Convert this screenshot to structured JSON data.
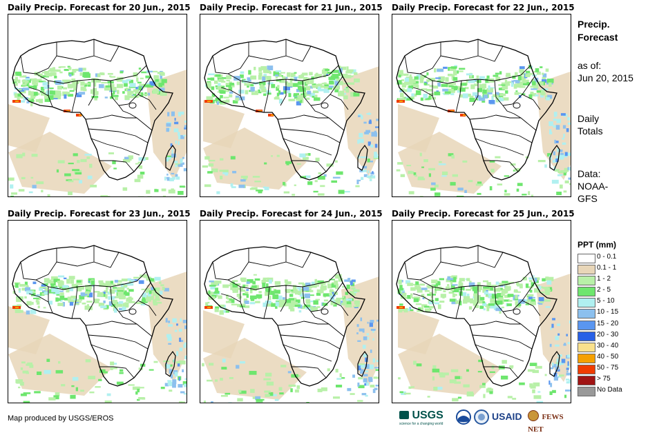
{
  "panels": [
    {
      "title": "Daily Precip. Forecast for 20 Jun., 2015"
    },
    {
      "title": "Daily Precip. Forecast for 21 Jun., 2015"
    },
    {
      "title": "Daily Precip. Forecast for 22 Jun., 2015"
    },
    {
      "title": "Daily Precip. Forecast for 23 Jun., 2015"
    },
    {
      "title": "Daily Precip. Forecast for 24 Jun., 2015"
    },
    {
      "title": "Daily Precip. Forecast for 25 Jun., 2015"
    }
  ],
  "side": {
    "title_line1": "Precip.",
    "title_line2": "Forecast",
    "asof_label": "as of:",
    "asof_date": "Jun 20, 2015",
    "totals_line1": "Daily",
    "totals_line2": "Totals",
    "data_line1": "Data:",
    "data_line2": "NOAA-",
    "data_line3": "GFS"
  },
  "legend": {
    "title": "PPT (mm)",
    "items": [
      {
        "label": "0 - 0.1",
        "color": "#ffffff"
      },
      {
        "label": "0.1 - 1",
        "color": "#e8d6b8"
      },
      {
        "label": "1 - 2",
        "color": "#b8f0a8"
      },
      {
        "label": "2 - 5",
        "color": "#6ee66e"
      },
      {
        "label": "5 - 10",
        "color": "#b0f0f0"
      },
      {
        "label": "10 - 15",
        "color": "#8cc0ee"
      },
      {
        "label": "15 - 20",
        "color": "#5a96f0"
      },
      {
        "label": "20 - 30",
        "color": "#2860e6"
      },
      {
        "label": "30 - 40",
        "color": "#fae18c"
      },
      {
        "label": "40 - 50",
        "color": "#f5a000"
      },
      {
        "label": "50 - 75",
        "color": "#f03c00"
      },
      {
        "label": "> 75",
        "color": "#a01414"
      },
      {
        "label": "No Data",
        "color": "#999999"
      }
    ]
  },
  "footer": {
    "credit": "Map produced by USGS/EROS",
    "usgs_logo": "USGS",
    "usgs_tagline": "science for a changing world",
    "usaid_logo": "USAID",
    "fews_logo": "FEWS NET"
  }
}
